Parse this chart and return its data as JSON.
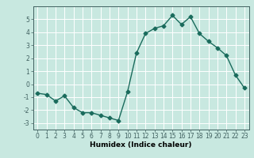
{
  "x": [
    0,
    1,
    2,
    3,
    4,
    5,
    6,
    7,
    8,
    9,
    10,
    11,
    12,
    13,
    14,
    15,
    16,
    17,
    18,
    19,
    20,
    21,
    22,
    23
  ],
  "y": [
    -0.7,
    -0.8,
    -1.3,
    -0.9,
    -1.8,
    -2.2,
    -2.2,
    -2.4,
    -2.6,
    -2.8,
    -0.6,
    2.4,
    3.9,
    4.3,
    4.5,
    5.3,
    4.6,
    5.2,
    3.9,
    3.3,
    2.8,
    2.2,
    0.7,
    -0.3
  ],
  "line_color": "#1a6b5c",
  "marker": "D",
  "markersize": 2.5,
  "linewidth": 1.0,
  "background_color": "#c8e8e0",
  "grid_color": "#ffffff",
  "xlabel": "Humidex (Indice chaleur)",
  "xlim": [
    -0.5,
    23.5
  ],
  "ylim": [
    -3.5,
    6.0
  ],
  "yticks": [
    -3,
    -2,
    -1,
    0,
    1,
    2,
    3,
    4,
    5
  ],
  "xticks": [
    0,
    1,
    2,
    3,
    4,
    5,
    6,
    7,
    8,
    9,
    10,
    11,
    12,
    13,
    14,
    15,
    16,
    17,
    18,
    19,
    20,
    21,
    22,
    23
  ],
  "tick_fontsize": 5.5,
  "label_fontsize": 6.5,
  "spine_color": "#406060"
}
